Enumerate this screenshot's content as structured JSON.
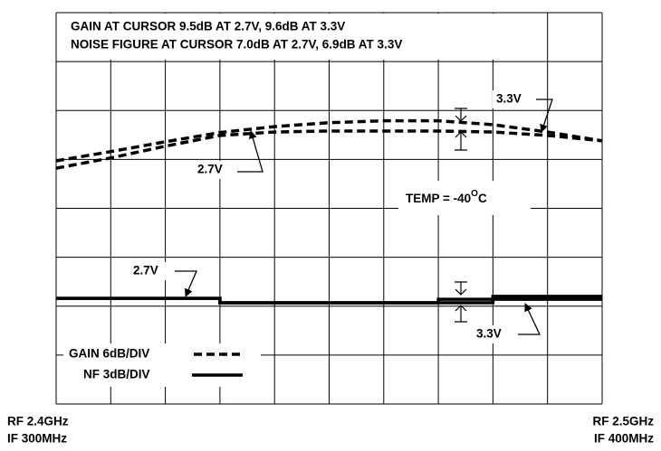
{
  "chart_data": {
    "type": "line",
    "title_lines": [
      "GAIN AT CURSOR 9.5dB AT 2.7V, 9.6dB AT 3.3V",
      "NOISE FIGURE AT CURSOR 7.0dB AT 2.7V, 6.9dB AT 3.3V"
    ],
    "x_start_labels": [
      "RF 2.4GHz",
      "IF 300MHz"
    ],
    "x_end_labels": [
      "RF 2.5GHz",
      "IF 400MHz"
    ],
    "temperature": {
      "text": "TEMP = -40",
      "sup": "O",
      "unit": "C"
    },
    "legend": [
      {
        "label": "GAIN 6dB/DIV",
        "style": "dashed"
      },
      {
        "label": "NF 3dB/DIV",
        "style": "solid"
      }
    ],
    "x": [
      2.4,
      2.41,
      2.42,
      2.43,
      2.44,
      2.45,
      2.46,
      2.47,
      2.48,
      2.49,
      2.5
    ],
    "xlim": [
      2.4,
      2.5
    ],
    "ylim": [
      0,
      8
    ],
    "grid": {
      "x_divisions": 10,
      "y_divisions": 8
    },
    "series": [
      {
        "name": "3.3V",
        "group": "gain",
        "style": "dashed",
        "color": "#000000",
        "values": [
          4.97,
          5.16,
          5.36,
          5.55,
          5.67,
          5.75,
          5.79,
          5.79,
          5.71,
          5.56,
          5.38
        ]
      },
      {
        "name": "2.7V",
        "group": "gain",
        "style": "dashed",
        "color": "#000000",
        "values": [
          4.82,
          5.03,
          5.27,
          5.49,
          5.56,
          5.58,
          5.58,
          5.58,
          5.56,
          5.49,
          5.38
        ]
      },
      {
        "name": "2.7V",
        "group": "nf",
        "style": "solid",
        "drawstyle": "steps-post",
        "color": "#000000",
        "values": [
          2.16,
          2.16,
          2.16,
          2.07,
          2.07,
          2.07,
          2.07,
          2.07,
          2.14,
          2.14,
          2.14
        ]
      },
      {
        "name": "3.3V",
        "group": "nf",
        "style": "solid",
        "drawstyle": "steps-post",
        "color": "#000000",
        "values": [
          2.16,
          2.16,
          2.16,
          2.07,
          2.07,
          2.07,
          2.07,
          2.14,
          2.2,
          2.2,
          2.2
        ]
      }
    ]
  }
}
